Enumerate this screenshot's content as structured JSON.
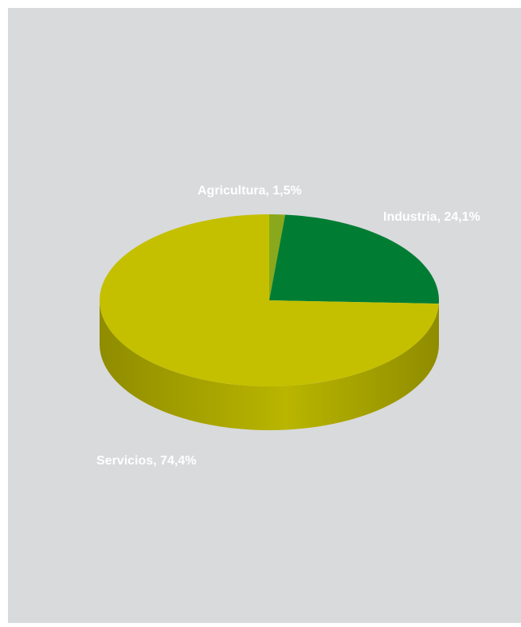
{
  "chart_data": {
    "type": "pie",
    "style": "3d",
    "slices": [
      {
        "name": "Agricultura",
        "value": 1.5,
        "label": "Agricultura, 1,5%",
        "color": "#8aa81b"
      },
      {
        "name": "Industria",
        "value": 24.1,
        "label": "Industria, 24,1%",
        "color": "#007d33"
      },
      {
        "name": "Servicios",
        "value": 74.4,
        "label": "Servicios, 74,4%",
        "color": "#c4c000"
      }
    ],
    "unit": "%"
  },
  "colors": {
    "background": "#d9dadc",
    "side_dark": "#8f8c00",
    "side_light": "#b9b500"
  }
}
